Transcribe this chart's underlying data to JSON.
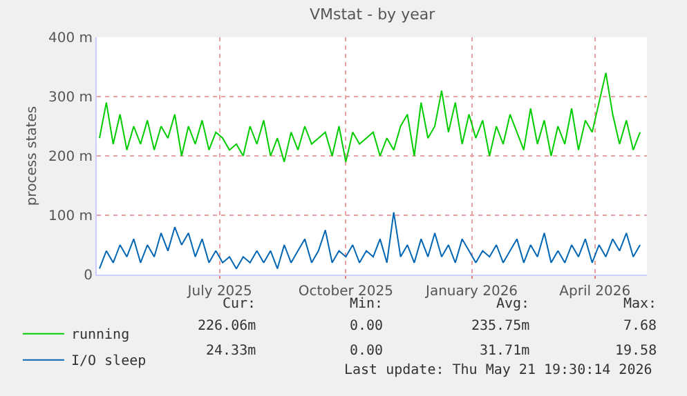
{
  "chart_data": {
    "type": "line",
    "title": "VMstat - by year",
    "ylabel": "process states",
    "x": [
      "2025-04-04",
      "2025-04-09",
      "2025-04-14",
      "2025-04-19",
      "2025-04-24",
      "2025-04-29",
      "2025-05-04",
      "2025-05-09",
      "2025-05-14",
      "2025-05-19",
      "2025-05-24",
      "2025-05-29",
      "2025-06-03",
      "2025-06-08",
      "2025-06-13",
      "2025-06-18",
      "2025-06-23",
      "2025-06-28",
      "2025-07-03",
      "2025-07-08",
      "2025-07-13",
      "2025-07-18",
      "2025-07-23",
      "2025-07-28",
      "2025-08-02",
      "2025-08-07",
      "2025-08-12",
      "2025-08-17",
      "2025-08-22",
      "2025-08-27",
      "2025-09-01",
      "2025-09-06",
      "2025-09-11",
      "2025-09-16",
      "2025-09-21",
      "2025-09-26",
      "2025-10-01",
      "2025-10-06",
      "2025-10-11",
      "2025-10-16",
      "2025-10-21",
      "2025-10-26",
      "2025-10-31",
      "2025-11-05",
      "2025-11-10",
      "2025-11-15",
      "2025-11-20",
      "2025-11-25",
      "2025-11-30",
      "2025-12-05",
      "2025-12-10",
      "2025-12-15",
      "2025-12-20",
      "2025-12-25",
      "2025-12-30",
      "2026-01-04",
      "2026-01-09",
      "2026-01-14",
      "2026-01-19",
      "2026-01-24",
      "2026-01-29",
      "2026-02-03",
      "2026-02-08",
      "2026-02-13",
      "2026-02-18",
      "2026-02-23",
      "2026-02-28",
      "2026-03-05",
      "2026-03-10",
      "2026-03-15",
      "2026-03-20",
      "2026-03-25",
      "2026-03-30",
      "2026-04-04",
      "2026-04-09",
      "2026-04-14",
      "2026-04-19",
      "2026-04-24",
      "2026-04-29",
      "2026-05-04"
    ],
    "series": [
      {
        "name": "running",
        "color": "#00cc00",
        "values": [
          230,
          290,
          220,
          270,
          210,
          250,
          220,
          260,
          210,
          250,
          230,
          270,
          200,
          250,
          220,
          260,
          210,
          240,
          230,
          210,
          220,
          200,
          250,
          220,
          260,
          200,
          230,
          190,
          240,
          210,
          250,
          220,
          230,
          240,
          200,
          250,
          190,
          240,
          220,
          230,
          240,
          200,
          230,
          210,
          250,
          270,
          200,
          290,
          230,
          250,
          310,
          240,
          290,
          220,
          270,
          230,
          260,
          200,
          250,
          220,
          270,
          240,
          210,
          280,
          220,
          260,
          200,
          250,
          220,
          280,
          210,
          260,
          240,
          290,
          340,
          270,
          220,
          260,
          210,
          240
        ]
      },
      {
        "name": "I/O sleep",
        "color": "#0066b3",
        "values": [
          10,
          40,
          20,
          50,
          30,
          60,
          20,
          50,
          30,
          70,
          40,
          80,
          50,
          70,
          30,
          60,
          20,
          40,
          20,
          30,
          10,
          30,
          20,
          40,
          20,
          40,
          10,
          50,
          20,
          40,
          60,
          20,
          40,
          75,
          20,
          40,
          30,
          50,
          20,
          40,
          30,
          60,
          20,
          105,
          30,
          50,
          20,
          60,
          30,
          70,
          30,
          50,
          20,
          60,
          40,
          20,
          40,
          30,
          50,
          20,
          40,
          60,
          20,
          50,
          30,
          70,
          20,
          40,
          20,
          50,
          30,
          60,
          20,
          50,
          30,
          60,
          40,
          70,
          30,
          50
        ]
      }
    ],
    "xlim": [
      "2025-04-02",
      "2026-05-09"
    ],
    "xticks": [
      {
        "value": "2025-07-01",
        "label": "July 2025"
      },
      {
        "value": "2025-10-01",
        "label": "October 2025"
      },
      {
        "value": "2026-01-01",
        "label": "January 2026"
      },
      {
        "value": "2026-04-01",
        "label": "April 2026"
      }
    ],
    "ylim": [
      0,
      400
    ],
    "yticks": [
      0,
      {
        "value": 100,
        "label": "100 m"
      },
      {
        "value": 200,
        "label": "200 m"
      },
      {
        "value": 300,
        "label": "300 m"
      },
      {
        "value": 400,
        "label": "400 m"
      }
    ],
    "grid": true,
    "legend": "bottom left",
    "marker": "none",
    "line_style": "solid",
    "annotations": [
      "Cur:",
      "Min:",
      "Avg:",
      "Max:",
      "226.06m",
      "0.00",
      "235.75m",
      "7.68",
      "24.33m",
      "0.00",
      "31.71m",
      "19.58",
      "Last update: Thu May 21 19:30:14 2026"
    ]
  }
}
